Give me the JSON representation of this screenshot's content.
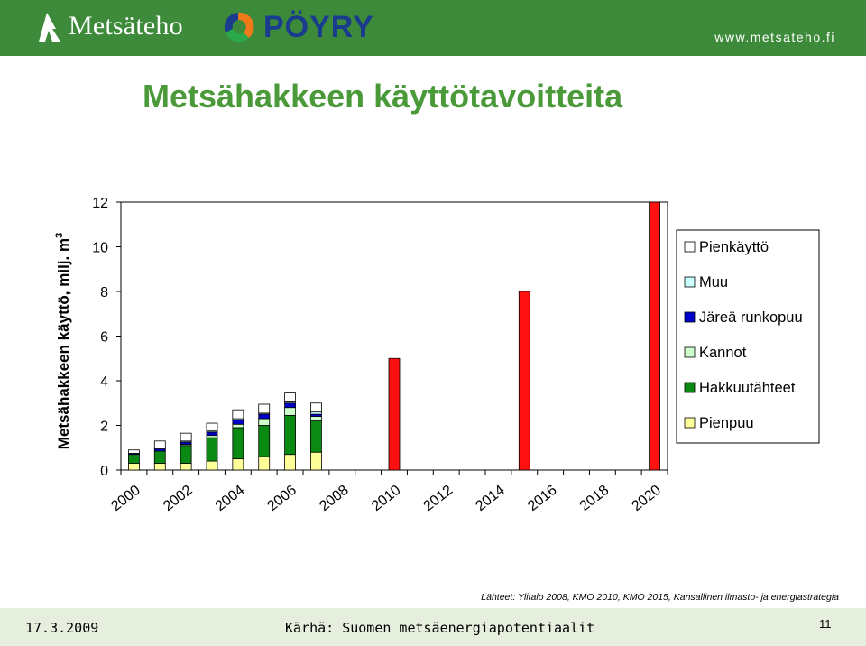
{
  "header": {
    "metsateho_logo": "Metsäteho",
    "poyry_logo": "PÖYRY",
    "url": "www.metsateho.fi"
  },
  "title": "Metsähakkeen käyttötavoitteita",
  "chart_data": {
    "type": "bar",
    "stacked": true,
    "ylabel": "Metsähakkeen käyttö, milj. m",
    "ylabel_superscript": "3",
    "ylim": [
      0,
      12
    ],
    "yticks": [
      0,
      2,
      4,
      6,
      8,
      10,
      12
    ],
    "xticks": [
      "2000",
      "2002",
      "2004",
      "2006",
      "2008",
      "2010",
      "2012",
      "2014",
      "2016",
      "2018",
      "2020"
    ],
    "categories": [
      "2000",
      "2001",
      "2002",
      "2003",
      "2004",
      "2005",
      "2006",
      "2007",
      "2008",
      "2009",
      "2010",
      "2011",
      "2012",
      "2013",
      "2014",
      "2015",
      "2016",
      "2017",
      "2018",
      "2019",
      "2020"
    ],
    "legend_position": "right",
    "series": [
      {
        "name": "Pienpuu",
        "color": "#ffff99",
        "values": [
          0.3,
          0.3,
          0.3,
          0.4,
          0.5,
          0.6,
          0.7,
          0.8,
          null,
          null,
          null,
          null,
          null,
          null,
          null,
          null,
          null,
          null,
          null,
          null,
          null
        ]
      },
      {
        "name": "Hakkuutähteet",
        "color": "#0a8a12",
        "values": [
          0.4,
          0.55,
          0.8,
          1.05,
          1.4,
          1.4,
          1.75,
          1.4,
          null,
          null,
          null,
          null,
          null,
          null,
          null,
          null,
          null,
          null,
          null,
          null,
          null
        ]
      },
      {
        "name": "Kannot",
        "color": "#ccffcc",
        "values": [
          0.0,
          0.0,
          0.05,
          0.1,
          0.15,
          0.3,
          0.35,
          0.2,
          null,
          null,
          null,
          null,
          null,
          null,
          null,
          null,
          null,
          null,
          null,
          null,
          null
        ]
      },
      {
        "name": "Järeä runkopuu",
        "color": "#0000cc",
        "values": [
          0.05,
          0.1,
          0.1,
          0.15,
          0.2,
          0.2,
          0.2,
          0.1,
          null,
          null,
          null,
          null,
          null,
          null,
          null,
          null,
          null,
          null,
          null,
          null,
          null
        ]
      },
      {
        "name": "Muu",
        "color": "#ccffff",
        "values": [
          0.0,
          0.0,
          0.05,
          0.05,
          0.05,
          0.05,
          0.05,
          0.1,
          null,
          null,
          null,
          null,
          null,
          null,
          null,
          null,
          null,
          null,
          null,
          null,
          null
        ]
      },
      {
        "name": "Pienkäyttö",
        "color": "#ffffff",
        "values": [
          0.15,
          0.35,
          0.35,
          0.35,
          0.4,
          0.4,
          0.4,
          0.4,
          null,
          null,
          null,
          null,
          null,
          null,
          null,
          null,
          null,
          null,
          null,
          null,
          null
        ]
      }
    ],
    "targets": [
      {
        "x": "2010",
        "value": 5,
        "color": "#ff1111"
      },
      {
        "x": "2015",
        "value": 8,
        "color": "#ff1111"
      },
      {
        "x": "2020",
        "value": 12,
        "color": "#ff1111"
      }
    ]
  },
  "source": "Lähteet: Ylitalo 2008, KMO 2010, KMO 2015, Kansallinen ilmasto- ja energiastrategia",
  "footer": {
    "date": "17.3.2009",
    "presentation": "Kärhä: Suomen metsäenergiapotentiaalit",
    "page": "11"
  }
}
